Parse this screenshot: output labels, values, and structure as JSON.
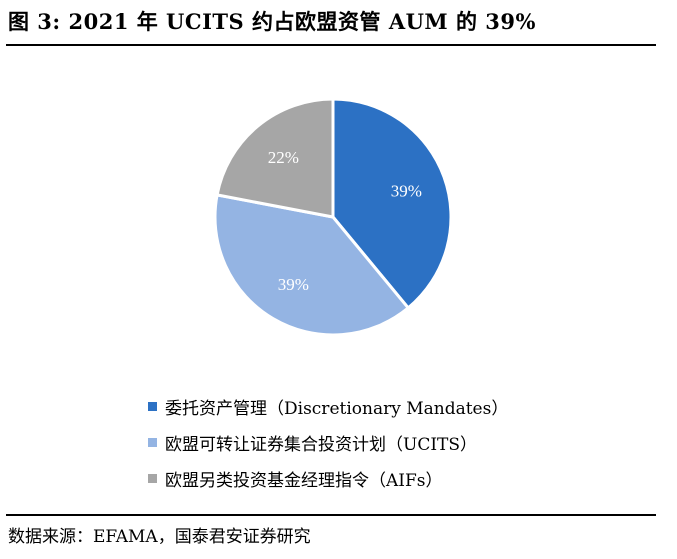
{
  "title": "图 3: 2021 年 UCITS 约占欧盟资管 AUM 的 39%",
  "source": "数据来源：EFAMA，国泰君安证券研究",
  "chart_data": {
    "type": "pie",
    "title": "",
    "slices": [
      {
        "label": "委托资产管理（Discretionary Mandates）",
        "value": 39,
        "display": "39%",
        "color": "#2c71c4"
      },
      {
        "label": "欧盟可转让证券集合投资计划（UCITS）",
        "value": 39,
        "display": "39%",
        "color": "#94b4e3"
      },
      {
        "label": "欧盟另类投资基金经理指令（AIFs）",
        "value": 22,
        "display": "22%",
        "color": "#a6a6a6"
      }
    ],
    "start_angle": "12 o'clock",
    "direction": "clockwise",
    "legend_position": "bottom"
  }
}
